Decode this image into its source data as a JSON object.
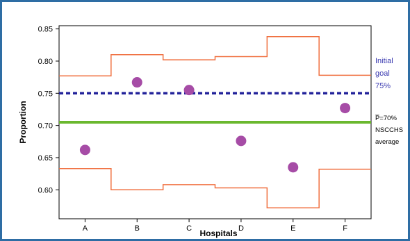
{
  "chart_data": {
    "type": "scatter",
    "title": "",
    "xlabel": "Hospitals",
    "ylabel": "Proportion",
    "categories": [
      "A",
      "B",
      "C",
      "D",
      "E",
      "F"
    ],
    "ylim": [
      0.555,
      0.855
    ],
    "yticks": [
      "0.85",
      "0.80",
      "0.75",
      "0.70",
      "0.65",
      "0.60"
    ],
    "ytick_values": [
      0.85,
      0.8,
      0.75,
      0.7,
      0.65,
      0.6
    ],
    "grid": false,
    "series": [
      {
        "values": [
          0.662,
          0.767,
          0.755,
          0.676,
          0.635,
          0.727
        ],
        "color": "#a64ca6"
      }
    ],
    "control_limits": {
      "color": "#f07040",
      "upper": [
        0.777,
        0.81,
        0.802,
        0.807,
        0.838,
        0.778
      ],
      "lower": [
        0.633,
        0.6,
        0.608,
        0.603,
        0.572,
        0.632
      ]
    },
    "reference_lines": [
      {
        "value": 0.75,
        "style": "dashed",
        "color": "#22229a",
        "label_lines": [
          "Initial",
          "goal",
          "75%"
        ]
      },
      {
        "value": 0.705,
        "style": "solid",
        "color": "#6ab82e",
        "label_lines": [
          "P̅=70%",
          "NSCCHS",
          "average"
        ]
      }
    ]
  }
}
